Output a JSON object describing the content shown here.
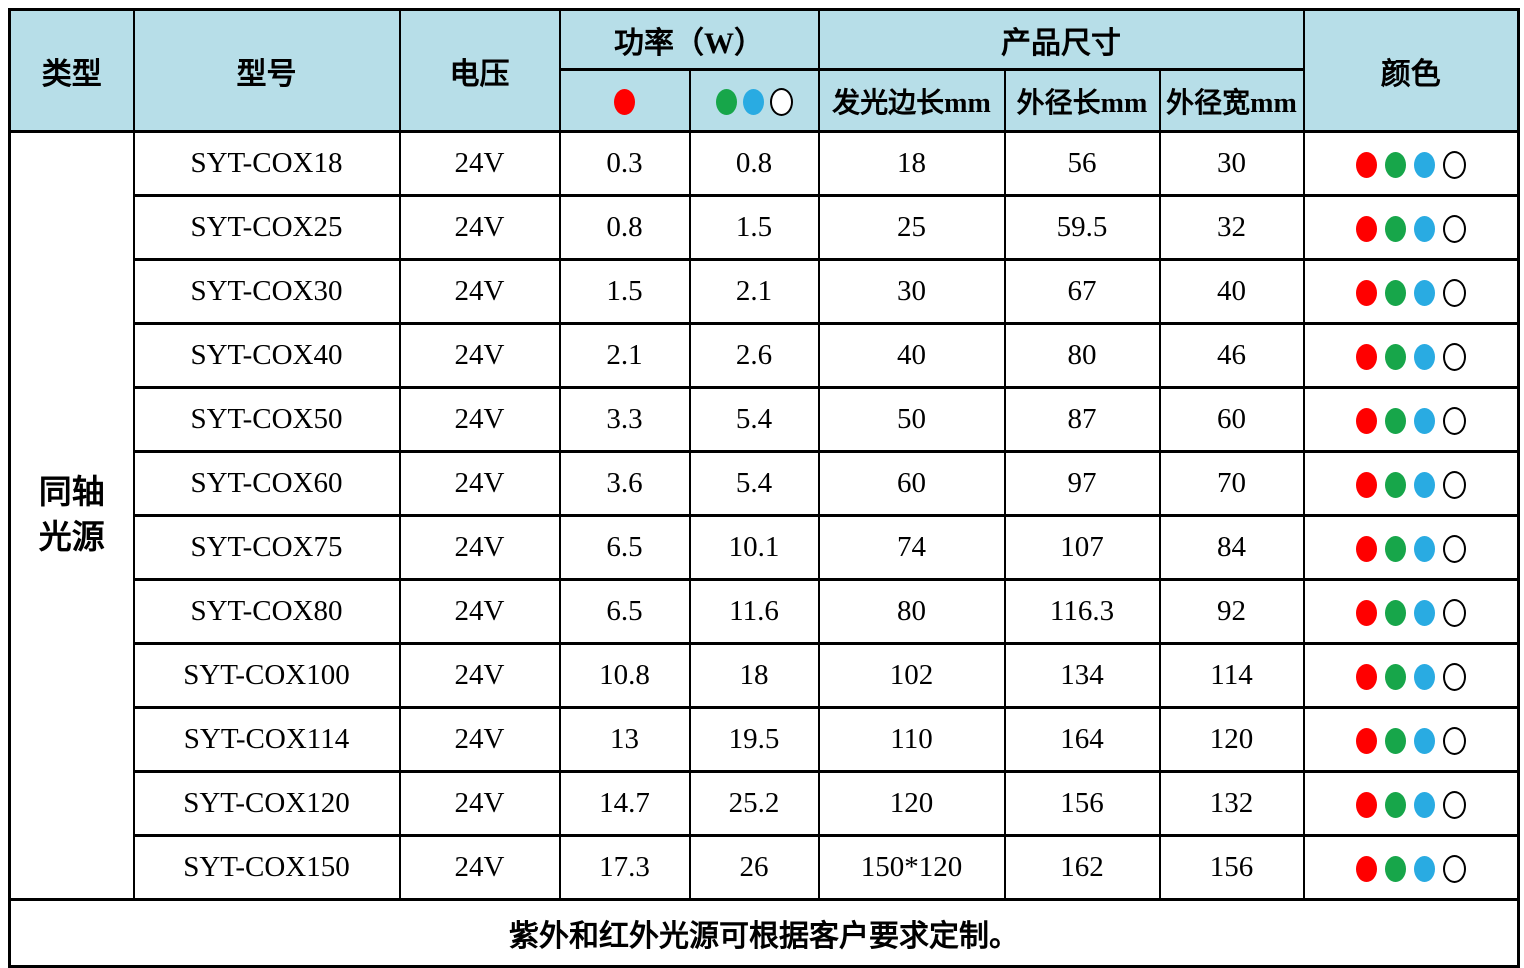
{
  "header": {
    "type_label": "类型",
    "model_label": "型号",
    "voltage_label": "电压",
    "power_label": "功率（W）",
    "size_label": "产品尺寸",
    "color_label": "颜色",
    "size_cols": [
      "发光边长mm",
      "外径长mm",
      "外径宽mm"
    ],
    "power_red_icons": [
      "red"
    ],
    "power_gbw_icons": [
      "green",
      "blue",
      "white"
    ]
  },
  "category_lines": [
    "同轴",
    "光源"
  ],
  "color_dots": [
    "red",
    "green",
    "blue",
    "white"
  ],
  "colors": {
    "red": "#FF0000",
    "green": "#17A64A",
    "blue": "#29ABE2",
    "white": "#FFFFFF",
    "header_bg": "#B7DEE8",
    "border": "#000000"
  },
  "rows": [
    {
      "model": "SYT-COX18",
      "voltage": "24V",
      "power_red": "0.3",
      "power_gbw": "0.8",
      "led_side": "18",
      "outer_len": "56",
      "outer_wid": "30"
    },
    {
      "model": "SYT-COX25",
      "voltage": "24V",
      "power_red": "0.8",
      "power_gbw": "1.5",
      "led_side": "25",
      "outer_len": "59.5",
      "outer_wid": "32"
    },
    {
      "model": "SYT-COX30",
      "voltage": "24V",
      "power_red": "1.5",
      "power_gbw": "2.1",
      "led_side": "30",
      "outer_len": "67",
      "outer_wid": "40"
    },
    {
      "model": "SYT-COX40",
      "voltage": "24V",
      "power_red": "2.1",
      "power_gbw": "2.6",
      "led_side": "40",
      "outer_len": "80",
      "outer_wid": "46"
    },
    {
      "model": "SYT-COX50",
      "voltage": "24V",
      "power_red": "3.3",
      "power_gbw": "5.4",
      "led_side": "50",
      "outer_len": "87",
      "outer_wid": "60"
    },
    {
      "model": "SYT-COX60",
      "voltage": "24V",
      "power_red": "3.6",
      "power_gbw": "5.4",
      "led_side": "60",
      "outer_len": "97",
      "outer_wid": "70"
    },
    {
      "model": "SYT-COX75",
      "voltage": "24V",
      "power_red": "6.5",
      "power_gbw": "10.1",
      "led_side": "74",
      "outer_len": "107",
      "outer_wid": "84"
    },
    {
      "model": "SYT-COX80",
      "voltage": "24V",
      "power_red": "6.5",
      "power_gbw": "11.6",
      "led_side": "80",
      "outer_len": "116.3",
      "outer_wid": "92"
    },
    {
      "model": "SYT-COX100",
      "voltage": "24V",
      "power_red": "10.8",
      "power_gbw": "18",
      "led_side": "102",
      "outer_len": "134",
      "outer_wid": "114"
    },
    {
      "model": "SYT-COX114",
      "voltage": "24V",
      "power_red": "13",
      "power_gbw": "19.5",
      "led_side": "110",
      "outer_len": "164",
      "outer_wid": "120"
    },
    {
      "model": "SYT-COX120",
      "voltage": "24V",
      "power_red": "14.7",
      "power_gbw": "25.2",
      "led_side": "120",
      "outer_len": "156",
      "outer_wid": "132"
    },
    {
      "model": "SYT-COX150",
      "voltage": "24V",
      "power_red": "17.3",
      "power_gbw": "26",
      "led_side": "150*120",
      "outer_len": "162",
      "outer_wid": "156"
    }
  ],
  "footer_note": "紫外和红外光源可根据客户要求定制。"
}
